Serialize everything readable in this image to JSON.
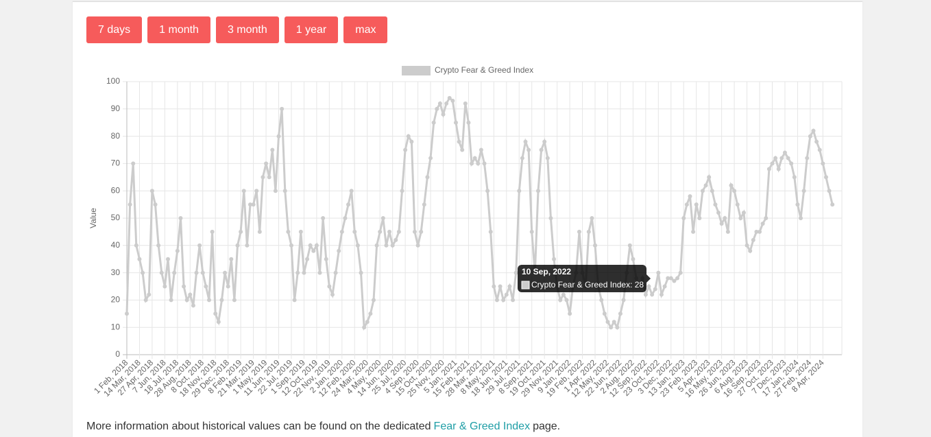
{
  "buttons": [
    "7 days",
    "1 month",
    "3 month",
    "1 year",
    "max"
  ],
  "chart_data": {
    "type": "line",
    "y_label": "Value",
    "series": [
      {
        "name": "Crypto Fear & Greed Index",
        "color": "#cccccc",
        "values": [
          15,
          55,
          70,
          40,
          35,
          30,
          20,
          22,
          60,
          55,
          40,
          30,
          25,
          35,
          20,
          30,
          38,
          50,
          25,
          20,
          22,
          18,
          30,
          40,
          30,
          25,
          20,
          45,
          15,
          12,
          20,
          30,
          25,
          35,
          20,
          40,
          45,
          60,
          40,
          55,
          55,
          60,
          45,
          65,
          70,
          65,
          75,
          60,
          80,
          90,
          60,
          45,
          40,
          20,
          30,
          45,
          30,
          35,
          40,
          38,
          40,
          30,
          50,
          35,
          25,
          22,
          30,
          38,
          45,
          50,
          55,
          60,
          45,
          40,
          30,
          10,
          12,
          15,
          20,
          40,
          45,
          50,
          40,
          45,
          40,
          42,
          45,
          60,
          75,
          80,
          78,
          45,
          40,
          45,
          55,
          65,
          72,
          85,
          90,
          92,
          88,
          92,
          94,
          93,
          85,
          78,
          75,
          92,
          85,
          70,
          72,
          70,
          75,
          70,
          60,
          45,
          25,
          20,
          25,
          20,
          22,
          25,
          20,
          30,
          60,
          72,
          78,
          75,
          45,
          30,
          60,
          75,
          78,
          72,
          50,
          35,
          25,
          20,
          22,
          20,
          15,
          25,
          30,
          45,
          30,
          25,
          45,
          50,
          40,
          25,
          20,
          15,
          12,
          10,
          12,
          10,
          15,
          20,
          30,
          40,
          35,
          28,
          25,
          28,
          22,
          25,
          22,
          24,
          30,
          22,
          25,
          28,
          28,
          27,
          28,
          30,
          50,
          55,
          58,
          45,
          55,
          50,
          60,
          62,
          65,
          60,
          55,
          52,
          48,
          50,
          45,
          62,
          60,
          55,
          50,
          52,
          40,
          38,
          42,
          45,
          45,
          48,
          50,
          68,
          70,
          72,
          68,
          72,
          74,
          72,
          70,
          65,
          55,
          50,
          60,
          72,
          80,
          82,
          78,
          75,
          70,
          65,
          60,
          55
        ]
      }
    ],
    "categories": [
      "1 Feb, 2018",
      null,
      null,
      null,
      "14 Mar, 2018",
      null,
      null,
      null,
      "27 Apr, 2018",
      null,
      null,
      null,
      "7 Jun, 2018",
      null,
      null,
      null,
      "18 Jul, 2018",
      null,
      null,
      null,
      "28 Aug, 2018",
      null,
      null,
      null,
      "8 Oct, 2018",
      null,
      null,
      null,
      "18 Nov, 2018",
      null,
      null,
      null,
      "29 Dec, 2018",
      null,
      null,
      null,
      "8 Feb, 2019",
      null,
      null,
      null,
      "21 Mar, 2019",
      null,
      null,
      null,
      "1 May, 2019",
      null,
      null,
      null,
      "11 Jun, 2019",
      null,
      null,
      null,
      "22 Jul, 2019",
      null,
      null,
      null,
      "1 Sep, 2019",
      null,
      null,
      null,
      "12 Oct, 2019",
      null,
      null,
      null,
      "22 Nov, 2019",
      null,
      null,
      null,
      "2 Jan, 2020",
      null,
      null,
      null,
      "12 Feb, 2020",
      null,
      null,
      null,
      "24 Mar, 2020",
      null,
      null,
      null,
      "4 May, 2020",
      null,
      null,
      null,
      "14 Jun, 2020",
      null,
      null,
      null,
      "25 Jul, 2020",
      null,
      null,
      null,
      "4 Sep, 2020",
      null,
      null,
      null,
      "15 Oct, 2020",
      null,
      null,
      null,
      "25 Nov, 2020",
      null,
      null,
      null,
      "5 Jan, 2021",
      null,
      null,
      null,
      "15 Feb, 2021",
      null,
      null,
      null,
      "28 Mar, 2021",
      null,
      null,
      null,
      "8 May, 2021",
      null,
      null,
      null,
      "18 Jun, 2021",
      null,
      null,
      null,
      "29 Jul, 2021",
      null,
      null,
      null,
      "8 Sep, 2021",
      null,
      null,
      null,
      "19 Oct, 2021",
      null,
      null,
      null,
      "29 Nov, 2021",
      null,
      null,
      null,
      "9 Jan, 2022",
      null,
      null,
      null,
      "19 Feb, 2022",
      null,
      null,
      null,
      "1 Apr, 2022",
      null,
      null,
      null,
      "12 May, 2022",
      null,
      null,
      null,
      "22 Jun, 2022",
      null,
      null,
      null,
      "2 Aug, 2022",
      null,
      null,
      null,
      "12 Sep, 2022",
      null,
      null,
      null,
      "23 Oct, 2022",
      null,
      null,
      null,
      "3 Dec, 2022",
      null,
      null,
      null,
      "13 Jan, 2023",
      null,
      null,
      null,
      "23 Feb, 2023",
      null,
      null,
      null,
      "5 Apr, 2023",
      null,
      null,
      null,
      "16 May, 2023",
      null,
      null,
      null,
      "26 Jun, 2023",
      null,
      null,
      null,
      "6 Aug, 2023",
      null,
      null,
      null,
      "16 Sep, 2023",
      null,
      null,
      null,
      "27 Oct, 2023",
      null,
      null,
      null,
      "7 Dec, 2023",
      null,
      null,
      null,
      "17 Jan, 2024",
      null,
      null,
      null,
      "27 Feb, 2024",
      null,
      null,
      null,
      "8 Apr, 2024",
      null,
      null,
      null
    ],
    "ylim": [
      0,
      100
    ],
    "yticks": [
      0,
      10,
      20,
      30,
      40,
      50,
      60,
      70,
      80,
      90,
      100
    ],
    "grid": true,
    "legend": "top",
    "tooltip": {
      "title": "10 Sep, 2022",
      "body": "Crypto Fear & Greed Index: 28"
    }
  },
  "footer": {
    "text": "More information about historical values can be found on the dedicated",
    "link": "Fear & Greed Index",
    "after": "page."
  }
}
